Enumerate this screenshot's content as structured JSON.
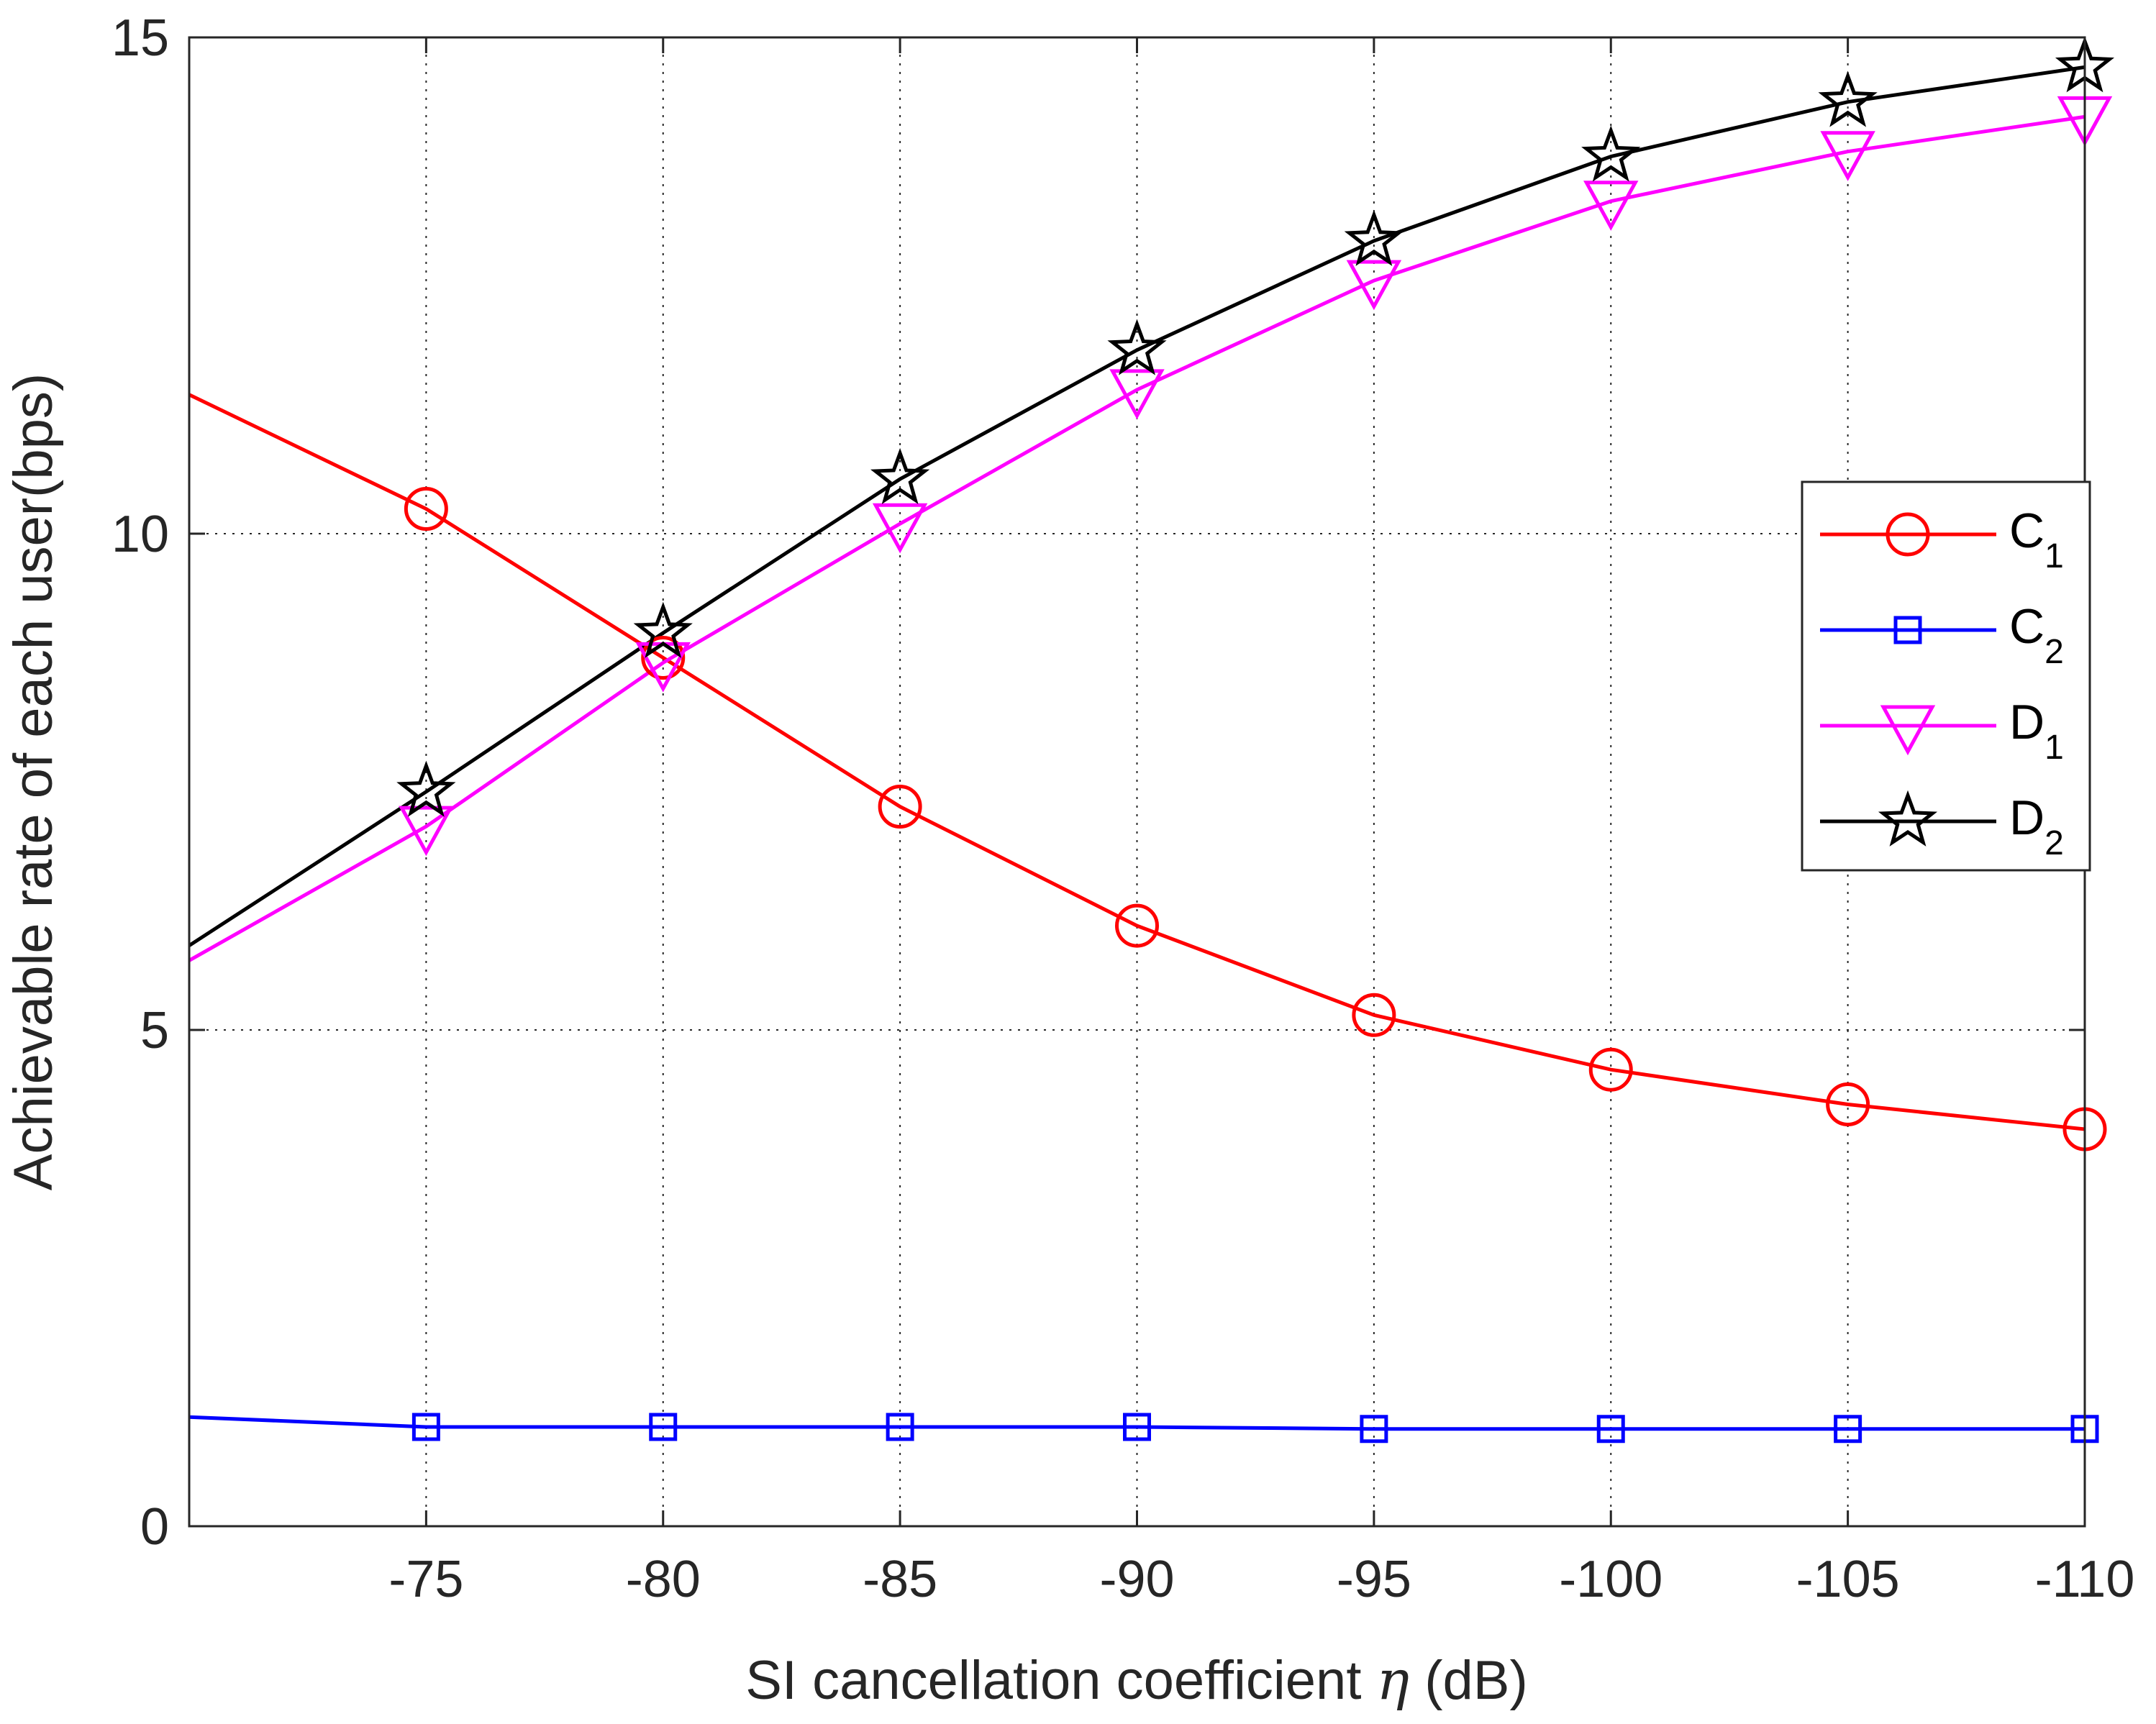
{
  "chart_data": {
    "type": "line",
    "title": "",
    "xlabel": "SI cancellation coefficient η (dB)",
    "xlabel_parts": {
      "before": "SI cancellation coefficient ",
      "symbol": "η",
      "after": " (dB)"
    },
    "ylabel": "Achievable rate of each user(bps)",
    "x": [
      -70,
      -75,
      -80,
      -85,
      -90,
      -95,
      -100,
      -105,
      -110
    ],
    "xticks": [
      -75,
      -80,
      -85,
      -90,
      -95,
      -100,
      -105,
      -110
    ],
    "xtick_labels": [
      "-75",
      "-80",
      "-85",
      "-90",
      "-95",
      "-100",
      "-105",
      "-110"
    ],
    "xlim": [
      -70,
      -110
    ],
    "yticks": [
      0,
      5,
      10,
      15
    ],
    "ytick_labels": [
      "0",
      "5",
      "10",
      "15"
    ],
    "ylim": [
      0,
      15
    ],
    "grid": true,
    "legend_position": "center-right",
    "series": [
      {
        "name": "C",
        "sub": "1",
        "color": "#ff0000",
        "marker": "circle",
        "values": [
          11.4,
          10.25,
          8.75,
          7.25,
          6.05,
          5.15,
          4.6,
          4.25,
          4.0
        ]
      },
      {
        "name": "C",
        "sub": "2",
        "color": "#0000ff",
        "marker": "square",
        "values": [
          1.1,
          1.0,
          1.0,
          1.0,
          1.0,
          0.98,
          0.98,
          0.98,
          0.98
        ]
      },
      {
        "name": "D",
        "sub": "1",
        "color": "#ff00ff",
        "marker": "triangle-down",
        "values": [
          5.7,
          7.05,
          8.7,
          10.1,
          11.45,
          12.55,
          13.35,
          13.85,
          14.2
        ]
      },
      {
        "name": "D",
        "sub": "2",
        "color": "#000000",
        "marker": "star",
        "values": [
          5.85,
          7.4,
          9.0,
          10.55,
          11.85,
          12.95,
          13.8,
          14.35,
          14.7
        ]
      }
    ]
  }
}
